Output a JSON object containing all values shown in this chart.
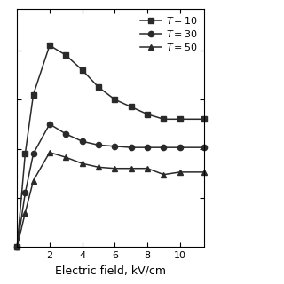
{
  "xlabel": "Electric field, kV/cm",
  "series": [
    {
      "x": [
        0.0,
        0.5,
        1.0,
        2.0,
        3.0,
        4.0,
        5.0,
        6.0,
        7.0,
        8.0,
        9.0,
        10.0,
        11.5
      ],
      "y": [
        0.0,
        0.38,
        0.62,
        0.82,
        0.78,
        0.72,
        0.65,
        0.6,
        0.57,
        0.54,
        0.52,
        0.52,
        0.52
      ],
      "marker": "s"
    },
    {
      "x": [
        0.0,
        0.5,
        1.0,
        2.0,
        3.0,
        4.0,
        5.0,
        6.0,
        7.0,
        8.0,
        9.0,
        10.0,
        11.5
      ],
      "y": [
        0.0,
        0.22,
        0.38,
        0.5,
        0.46,
        0.43,
        0.415,
        0.41,
        0.405,
        0.405,
        0.405,
        0.405,
        0.405
      ],
      "marker": "o"
    },
    {
      "x": [
        0.0,
        0.5,
        1.0,
        2.0,
        3.0,
        4.0,
        5.0,
        6.0,
        7.0,
        8.0,
        9.0,
        10.0,
        11.5
      ],
      "y": [
        0.0,
        0.14,
        0.27,
        0.385,
        0.365,
        0.34,
        0.325,
        0.32,
        0.32,
        0.32,
        0.295,
        0.305,
        0.305
      ],
      "marker": "^"
    }
  ],
  "xlim": [
    0,
    11.5
  ],
  "ylim": [
    0,
    0.97
  ],
  "xticks": [
    2,
    4,
    6,
    8,
    10
  ],
  "yticks": [
    0.2,
    0.4,
    0.6,
    0.8
  ],
  "color": "#2a2a2a",
  "linewidth": 1.1,
  "markersize": 4.5,
  "legend_labels": [
    "$T = 10$",
    "$T = 30$",
    "$T = 50$"
  ],
  "legend_markers": [
    "s",
    "o",
    "^"
  ],
  "background": "#ffffff",
  "xlabel_fontsize": 9,
  "tick_labelsize": 8,
  "legend_fontsize": 8
}
